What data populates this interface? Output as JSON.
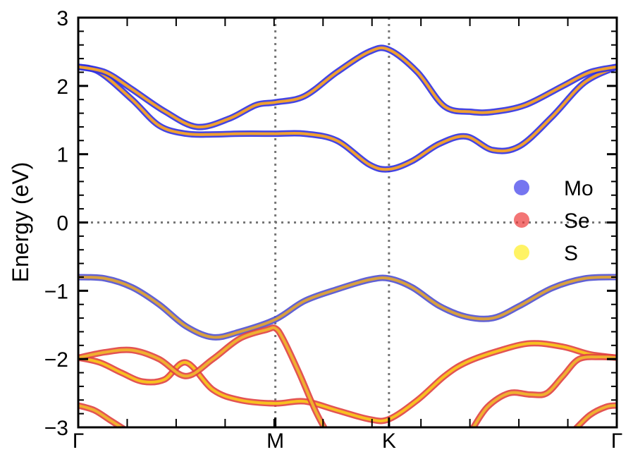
{
  "chart_data": {
    "type": "line",
    "title": "",
    "xlabel": "",
    "ylabel": "Energy (eV)",
    "xlim": [
      0,
      1
    ],
    "ylim": [
      -3,
      3
    ],
    "y_ticks": [
      -3,
      -2,
      -1,
      0,
      1,
      2,
      3
    ],
    "y_tick_labels": [
      "−3",
      "−2",
      "−1",
      "0",
      "1",
      "2",
      "3"
    ],
    "x_ticks": [
      {
        "label": "Γ",
        "pos": 0.0
      },
      {
        "label": "M",
        "pos": 0.366
      },
      {
        "label": "K",
        "pos": 0.577
      },
      {
        "label": "Γ",
        "pos": 1.0
      }
    ],
    "grid": "dotted at M, K and E=0",
    "legend": {
      "placement": "right",
      "entries": [
        {
          "name": "Mo",
          "color": "#3b3bea"
        },
        {
          "name": "Se",
          "color": "#ee3a3a"
        },
        {
          "name": "S",
          "color": "#ffee22"
        }
      ]
    },
    "bands": [
      {
        "name": "cb2",
        "color_main": "#f0a030",
        "color_outer": "#3030e0",
        "x": [
          0,
          0.04,
          0.1,
          0.15,
          0.2,
          0.25,
          0.3,
          0.366,
          0.42,
          0.48,
          0.54,
          0.577,
          0.62,
          0.67,
          0.72,
          0.77,
          0.82,
          0.88,
          0.94,
          1.0
        ],
        "y": [
          2.28,
          2.2,
          1.8,
          1.42,
          1.3,
          1.29,
          1.3,
          1.3,
          1.3,
          1.2,
          0.85,
          0.78,
          0.9,
          1.15,
          1.26,
          1.06,
          1.12,
          1.55,
          2.05,
          2.28
        ]
      },
      {
        "name": "cb1",
        "color_main": "#f0a030",
        "color_outer": "#3030e0",
        "x": [
          0,
          0.05,
          0.1,
          0.16,
          0.22,
          0.28,
          0.33,
          0.366,
          0.42,
          0.48,
          0.54,
          0.577,
          0.63,
          0.68,
          0.73,
          0.77,
          0.83,
          0.9,
          0.95,
          1.0
        ],
        "y": [
          2.28,
          2.2,
          1.95,
          1.63,
          1.4,
          1.52,
          1.72,
          1.76,
          1.85,
          2.2,
          2.5,
          2.53,
          2.2,
          1.7,
          1.62,
          1.62,
          1.72,
          2.0,
          2.2,
          2.28
        ]
      },
      {
        "name": "vb1",
        "color_main": "#d8a040",
        "color_outer": "#5050d0",
        "x": [
          0,
          0.05,
          0.1,
          0.15,
          0.2,
          0.25,
          0.3,
          0.366,
          0.42,
          0.48,
          0.54,
          0.577,
          0.62,
          0.67,
          0.72,
          0.77,
          0.82,
          0.88,
          0.94,
          1.0
        ],
        "y": [
          -0.8,
          -0.82,
          -0.95,
          -1.2,
          -1.52,
          -1.68,
          -1.6,
          -1.42,
          -1.15,
          -0.98,
          -0.84,
          -0.82,
          -0.95,
          -1.22,
          -1.38,
          -1.4,
          -1.22,
          -0.96,
          -0.82,
          -0.8
        ]
      },
      {
        "name": "vb2",
        "color_main": "#f8c020",
        "color_outer": "#e04040",
        "x": [
          0,
          0.04,
          0.08,
          0.12,
          0.16,
          0.2,
          0.25,
          0.3,
          0.366,
          0.42,
          0.48,
          0.54,
          0.577,
          0.63,
          0.68,
          0.72,
          0.78,
          0.84,
          0.9,
          0.95,
          1.0
        ],
        "y": [
          -1.98,
          -2.05,
          -2.2,
          -2.33,
          -2.3,
          -2.05,
          -2.45,
          -2.6,
          -2.65,
          -2.62,
          -2.75,
          -2.88,
          -2.88,
          -2.6,
          -2.25,
          -2.05,
          -1.88,
          -1.77,
          -1.82,
          -1.93,
          -1.98
        ]
      },
      {
        "name": "vb3",
        "color_main": "#f0b030",
        "color_outer": "#e04040",
        "x": [
          0,
          0.05,
          0.1,
          0.15,
          0.2,
          0.25,
          0.3,
          0.35,
          0.366,
          0.38,
          0.41,
          0.44,
          0.46
        ],
        "y": [
          -1.98,
          -1.9,
          -1.87,
          -2.0,
          -2.25,
          -2.0,
          -1.7,
          -1.57,
          -1.55,
          -1.7,
          -2.2,
          -2.75,
          -3.05
        ]
      },
      {
        "name": "vb4",
        "color_main": "#f0b030",
        "color_outer": "#e04040",
        "x": [
          0.73,
          0.76,
          0.8,
          0.84,
          0.87,
          0.9,
          0.93,
          0.97,
          1.0
        ],
        "y": [
          -3.05,
          -2.7,
          -2.5,
          -2.52,
          -2.5,
          -2.25,
          -2.0,
          -1.97,
          -1.98
        ]
      },
      {
        "name": "vb5",
        "color_main": "#f0b030",
        "color_outer": "#e04040",
        "x": [
          0,
          0.03,
          0.06,
          0.09
        ],
        "y": [
          -2.68,
          -2.75,
          -2.9,
          -3.05
        ]
      },
      {
        "name": "vb6",
        "color_main": "#f0b030",
        "color_outer": "#e04040",
        "x": [
          0.92,
          0.95,
          0.98,
          1.0
        ],
        "y": [
          -3.05,
          -2.82,
          -2.7,
          -2.68
        ]
      }
    ]
  }
}
